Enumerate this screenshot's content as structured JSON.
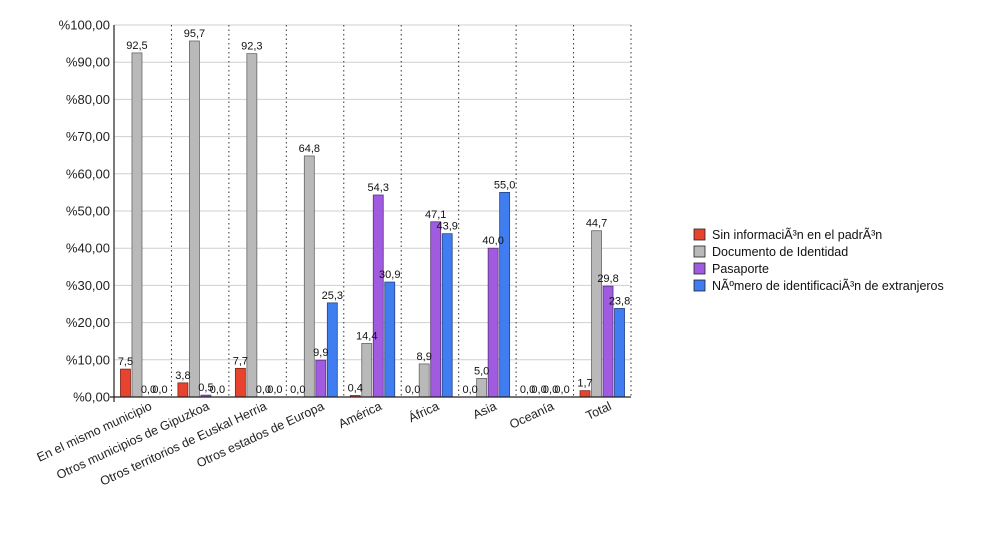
{
  "chart_data": {
    "type": "bar",
    "title": "",
    "xlabel": "",
    "ylabel": "",
    "ylim": [
      0,
      100
    ],
    "yticks": [
      "%0,00",
      "%10,00",
      "%20,00",
      "%30,00",
      "%40,00",
      "%50,00",
      "%60,00",
      "%70,00",
      "%80,00",
      "%90,00",
      "%100,00"
    ],
    "grid": true,
    "legend_position": "right",
    "categories": [
      "En el mismo municipio",
      "Otros municipios de Gipuzkoa",
      "Otros territorios de Euskal Herria",
      "Otros estados de Europa",
      "América",
      "África",
      "Asia",
      "Oceanía",
      "Total"
    ],
    "series": [
      {
        "name": "Sin informaciÃ³n en el padrÃ³n",
        "color": "#e8432e",
        "values": [
          7.5,
          3.8,
          7.7,
          0.0,
          0.4,
          0.0,
          0.0,
          0.0,
          1.7
        ],
        "labels": [
          "7,5",
          "3,8",
          "7,7",
          "0,0",
          "0,4",
          "0,0",
          "0,0",
          "0,0",
          "1,7"
        ]
      },
      {
        "name": "Documento de Identidad",
        "color": "#b9b9b9",
        "values": [
          92.5,
          95.7,
          92.3,
          64.8,
          14.4,
          8.9,
          5.0,
          0.0,
          44.7
        ],
        "labels": [
          "92,5",
          "95,7",
          "92,3",
          "64,8",
          "14,4",
          "8,9",
          "5,0",
          "0,0",
          "44,7"
        ]
      },
      {
        "name": "Pasaporte",
        "color": "#a05be0",
        "values": [
          0.0,
          0.5,
          0.0,
          9.9,
          54.3,
          47.1,
          40.0,
          0.0,
          29.8
        ],
        "labels": [
          "0,0",
          "0,5",
          "0,0",
          "9,9",
          "54,3",
          "47,1",
          "40,0",
          "0,0",
          "29,8"
        ]
      },
      {
        "name": "NÃºmero de identificaciÃ³n de extranjeros",
        "color": "#3f7df0",
        "values": [
          0.0,
          0.0,
          0.0,
          25.3,
          30.9,
          43.9,
          55.0,
          0.0,
          23.8
        ],
        "labels": [
          "0,0",
          "0,0",
          "0,0",
          "25,3",
          "30,9",
          "43,9",
          "55,0",
          "0,0",
          "23,8"
        ]
      }
    ]
  }
}
